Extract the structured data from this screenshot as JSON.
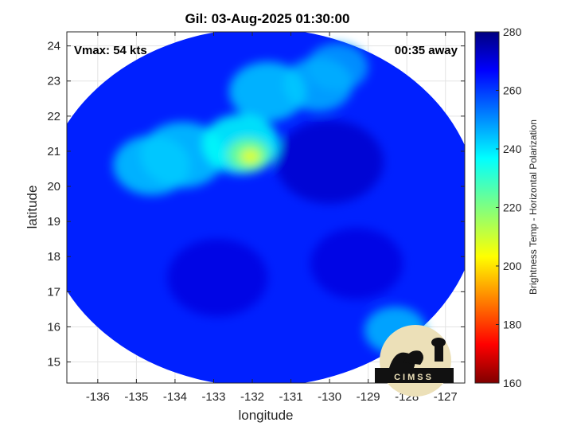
{
  "chart_data": {
    "type": "heatmap",
    "title": "Gil: 03-Aug-2025 01:30:00",
    "xlabel": "longitude",
    "ylabel": "latitude",
    "xlim": [
      -136.8,
      -126.5
    ],
    "ylim": [
      14.4,
      24.4
    ],
    "xticks": [
      -136,
      -135,
      -134,
      -133,
      -132,
      -131,
      -130,
      -129,
      -128,
      -127
    ],
    "yticks": [
      15,
      16,
      17,
      18,
      19,
      20,
      21,
      22,
      23,
      24
    ],
    "grid": true,
    "colorbar": {
      "label": "Brightness Temp - Horizontal Polarization",
      "range": [
        160,
        280
      ],
      "ticks": [
        160,
        180,
        200,
        220,
        240,
        260,
        280
      ],
      "colormap": "jet"
    },
    "annotations": {
      "vmax": "Vmax: 54 kts",
      "time_offset": "00:35 away"
    },
    "swath": {
      "center": [
        -131.8,
        19.4
      ],
      "radius_deg_lon": 5.65,
      "radius_deg_lat": 5.1,
      "background_temp": 263
    },
    "features": [
      {
        "lon": -132.05,
        "lat": 20.85,
        "temp": 205,
        "spread": 0.25
      },
      {
        "lon": -132.1,
        "lat": 20.9,
        "temp": 222,
        "spread": 0.55
      },
      {
        "lon": -132.3,
        "lat": 21.2,
        "temp": 236,
        "spread": 1.0
      },
      {
        "lon": -133.8,
        "lat": 20.9,
        "temp": 243,
        "spread": 1.1
      },
      {
        "lon": -134.6,
        "lat": 20.6,
        "temp": 243,
        "spread": 1.0
      },
      {
        "lon": -131.6,
        "lat": 22.7,
        "temp": 243,
        "spread": 1.0
      },
      {
        "lon": -130.3,
        "lat": 22.9,
        "temp": 246,
        "spread": 0.9
      },
      {
        "lon": -129.8,
        "lat": 23.4,
        "temp": 248,
        "spread": 0.8
      },
      {
        "lon": -128.3,
        "lat": 15.9,
        "temp": 245,
        "spread": 0.8
      },
      {
        "lon": -130.0,
        "lat": 20.7,
        "temp": 272,
        "spread": 1.4
      },
      {
        "lon": -129.3,
        "lat": 17.8,
        "temp": 270,
        "spread": 1.2
      },
      {
        "lon": -132.9,
        "lat": 17.4,
        "temp": 270,
        "spread": 1.3
      }
    ],
    "logo_text": "CIMSS"
  }
}
